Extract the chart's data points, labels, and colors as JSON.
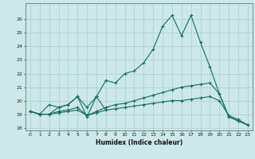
{
  "title": "",
  "xlabel": "Humidex (Indice chaleur)",
  "background_color": "#cce8e8",
  "grid_color": "#aacfcf",
  "line_color": "#1a6b5a",
  "x_values": [
    0,
    1,
    2,
    3,
    4,
    5,
    6,
    7,
    8,
    9,
    10,
    11,
    12,
    13,
    14,
    15,
    16,
    17,
    18,
    19,
    20,
    21,
    22,
    23
  ],
  "line_main": [
    19.2,
    null,
    null,
    null,
    null,
    null,
    null,
    null,
    null,
    null,
    null,
    null,
    null,
    null,
    null,
    26.3,
    24.8,
    26.3,
    24.3,
    null,
    null,
    null,
    null,
    null
  ],
  "line_a": [
    19.2,
    19.8,
    null,
    null,
    null,
    null,
    null,
    null,
    null,
    null,
    null,
    null,
    null,
    null,
    null,
    null,
    null,
    null,
    null,
    null,
    null,
    null,
    null,
    null
  ],
  "line_top": [
    19.2,
    null,
    null,
    null,
    null,
    null,
    null,
    20.3,
    21.5,
    21.3,
    22.0,
    22.8,
    22.8,
    23.8,
    25.5,
    26.3,
    24.8,
    26.3,
    24.3,
    22.5,
    20.5,
    null,
    null,
    null
  ],
  "line_mid": [
    19.2,
    19.0,
    19.0,
    19.5,
    19.7,
    20.3,
    18.8,
    20.3,
    21.5,
    21.3,
    22.0,
    22.2,
    22.8,
    23.8,
    25.5,
    26.3,
    24.8,
    26.3,
    24.3,
    22.5,
    20.5,
    18.8,
    18.5,
    18.2
  ],
  "line_low1": [
    19.2,
    19.0,
    19.7,
    19.5,
    19.7,
    20.3,
    19.5,
    20.3,
    19.3,
    null,
    null,
    null,
    null,
    null,
    null,
    null,
    null,
    null,
    null,
    null,
    null,
    null,
    null,
    null
  ],
  "line_low2": [
    19.2,
    19.0,
    19.0,
    19.2,
    19.3,
    19.5,
    18.9,
    19.2,
    19.5,
    19.7,
    19.8,
    20.0,
    20.2,
    20.4,
    20.6,
    20.8,
    21.0,
    21.1,
    21.2,
    21.3,
    20.5,
    18.8,
    18.5,
    18.2
  ],
  "line_bot": [
    19.2,
    19.0,
    19.0,
    19.1,
    19.2,
    19.3,
    18.9,
    19.1,
    19.3,
    19.4,
    19.5,
    19.6,
    19.7,
    19.8,
    19.9,
    20.0,
    20.0,
    20.1,
    20.2,
    20.3,
    20.0,
    18.9,
    18.6,
    18.2
  ],
  "ylim": [
    17.8,
    27.2
  ],
  "xlim": [
    -0.5,
    23.5
  ],
  "yticks": [
    18,
    19,
    20,
    21,
    22,
    23,
    24,
    25,
    26
  ],
  "xticks": [
    0,
    1,
    2,
    3,
    4,
    5,
    6,
    7,
    8,
    9,
    10,
    11,
    12,
    13,
    14,
    15,
    16,
    17,
    18,
    19,
    20,
    21,
    22,
    23
  ]
}
